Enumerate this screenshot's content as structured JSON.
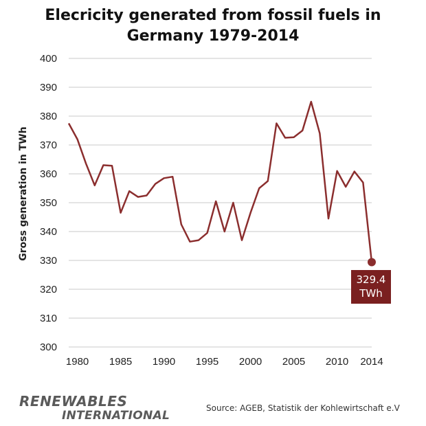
{
  "title_lines": [
    "Elecricity generated from fossil fuels in",
    "Germany 1979-2014"
  ],
  "source": "Source: AGEB, Statistik der Kohlewirtschaft e.V",
  "logo": {
    "line1": "RENEWABLES",
    "line2": "INTERNATIONAL"
  },
  "callout": {
    "value": "329.4",
    "unit": "TWh"
  },
  "colors": {
    "line": "#8b2e2e",
    "callout_bg": "#7a2020",
    "grid": "#c8c8c8"
  },
  "chart_data": {
    "type": "line",
    "title": "Elecricity generated from fossil fuels in Germany 1979-2014",
    "ylabel": "Gross generation in TWh",
    "xlabel": "",
    "xlim": [
      1979,
      2014
    ],
    "ylim": [
      300,
      400
    ],
    "y_ticks": [
      300,
      310,
      320,
      330,
      340,
      350,
      360,
      370,
      380,
      390,
      400
    ],
    "x_ticks": [
      1980,
      1985,
      1990,
      1995,
      2000,
      2005,
      2010,
      2014
    ],
    "grid": "horizontal",
    "x": [
      1979,
      1980,
      1981,
      1982,
      1983,
      1984,
      1985,
      1986,
      1987,
      1988,
      1989,
      1990,
      1991,
      1992,
      1993,
      1994,
      1995,
      1996,
      1997,
      1998,
      1999,
      2000,
      2001,
      2002,
      2003,
      2004,
      2005,
      2006,
      2007,
      2008,
      2009,
      2010,
      2011,
      2012,
      2013,
      2014
    ],
    "values": [
      377.5,
      372,
      363.5,
      356,
      363,
      362.8,
      346.5,
      354,
      352,
      352.5,
      356.5,
      358.5,
      359,
      342.5,
      336.5,
      337,
      339.5,
      350.5,
      340,
      350,
      337,
      346.5,
      355,
      357.5,
      377.5,
      372.5,
      372.7,
      375,
      385,
      374,
      344.5,
      361,
      355.5,
      360.8,
      357,
      329.4
    ],
    "annotations": [
      {
        "x": 2014,
        "y": 329.4,
        "text": "329.4 TWh"
      }
    ]
  }
}
